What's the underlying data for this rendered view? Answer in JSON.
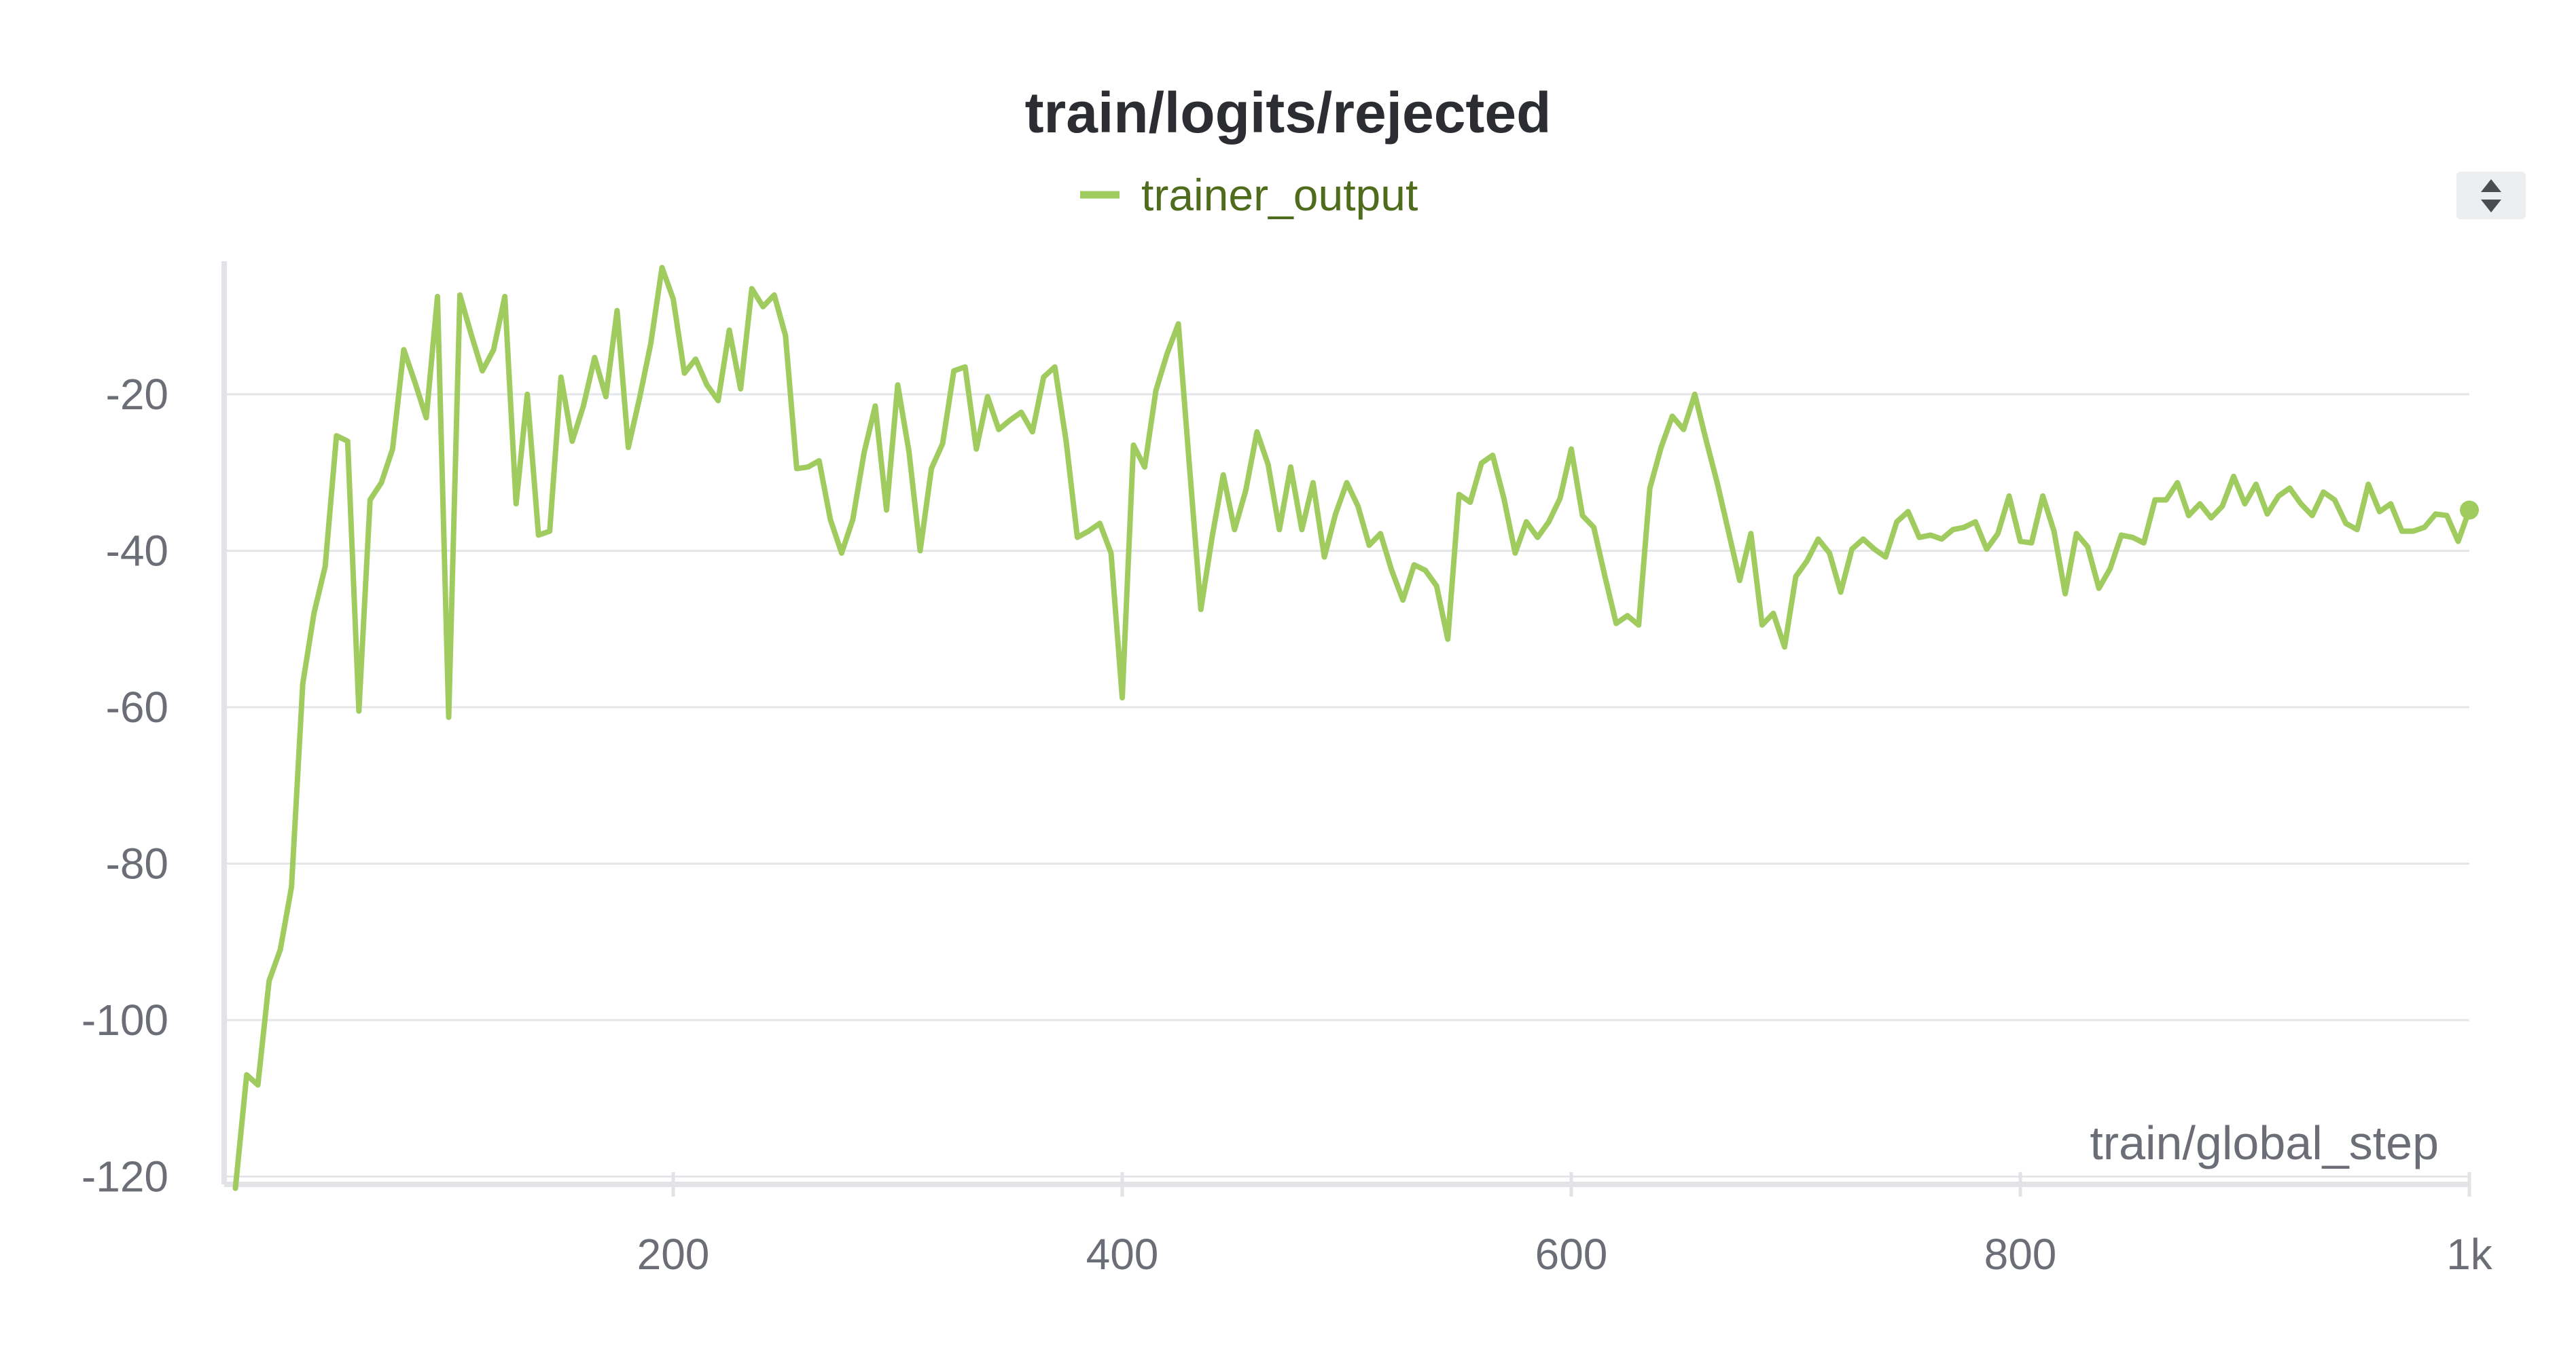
{
  "chart_data": {
    "type": "line",
    "title": "train/logits/rejected",
    "xlabel": "train/global_step",
    "ylabel": "",
    "xlim": [
      0,
      1000
    ],
    "ylim": [
      -121,
      -3
    ],
    "x_ticks": [
      200,
      400,
      600,
      800,
      1000
    ],
    "x_tick_labels": [
      "200",
      "400",
      "600",
      "800",
      "1k"
    ],
    "y_ticks": [
      -120,
      -100,
      -80,
      -60,
      -40,
      -20
    ],
    "y_tick_labels": [
      "-120",
      "-100",
      "-80",
      "-60",
      "-40",
      "-20"
    ],
    "grid": true,
    "legend_position": "top-center",
    "series_color": "#9fcb5f",
    "series": [
      {
        "name": "trainer_output",
        "x": [
          5,
          10,
          15,
          20,
          25,
          30,
          35,
          40,
          45,
          50,
          55,
          60,
          65,
          70,
          75,
          80,
          85,
          90,
          95,
          100,
          105,
          110,
          115,
          120,
          125,
          130,
          135,
          140,
          145,
          150,
          155,
          160,
          165,
          170,
          175,
          180,
          185,
          190,
          195,
          200,
          205,
          210,
          215,
          220,
          225,
          230,
          235,
          240,
          245,
          250,
          255,
          260,
          265,
          270,
          275,
          280,
          285,
          290,
          295,
          300,
          305,
          310,
          315,
          320,
          325,
          330,
          335,
          340,
          345,
          350,
          355,
          360,
          365,
          370,
          375,
          380,
          385,
          390,
          395,
          400,
          405,
          410,
          415,
          420,
          425,
          430,
          435,
          440,
          445,
          450,
          455,
          460,
          465,
          470,
          475,
          480,
          485,
          490,
          495,
          500,
          505,
          510,
          515,
          520,
          525,
          530,
          535,
          540,
          545,
          550,
          555,
          560,
          565,
          570,
          575,
          580,
          585,
          590,
          595,
          600,
          605,
          610,
          615,
          620,
          625,
          630,
          635,
          640,
          645,
          650,
          655,
          660,
          665,
          670,
          675,
          680,
          685,
          690,
          695,
          700,
          705,
          710,
          715,
          720,
          725,
          730,
          735,
          740,
          745,
          750,
          755,
          760,
          765,
          770,
          775,
          780,
          785,
          790,
          795,
          800,
          805,
          810,
          815,
          820,
          825,
          830,
          835,
          840,
          845,
          850,
          855,
          860,
          865,
          870,
          875,
          880,
          885,
          890,
          895,
          900,
          905,
          910,
          915,
          920,
          925,
          930,
          935,
          940,
          945,
          950,
          955,
          960,
          965,
          970,
          975,
          980,
          985,
          990,
          995,
          1000
        ],
        "y": [
          -121.5,
          -107,
          -108.3,
          -95,
          -91,
          -83,
          -57,
          -48,
          -42,
          -25.3,
          -26,
          -60.5,
          -33.5,
          -31.3,
          -27,
          -14.3,
          -18.5,
          -23,
          -7.5,
          -61.3,
          -7.3,
          -12.3,
          -17,
          -14.3,
          -7.5,
          -34,
          -20,
          -38,
          -37.5,
          -17.8,
          -26,
          -21.5,
          -15.3,
          -20.3,
          -9.3,
          -26.8,
          -20.5,
          -13.5,
          -3.8,
          -7.8,
          -17.3,
          -15.5,
          -18.8,
          -20.8,
          -11.8,
          -19.3,
          -6.5,
          -8.8,
          -7.3,
          -12.5,
          -29.5,
          -29.3,
          -28.5,
          -36,
          -40.3,
          -36,
          -27.5,
          -21.5,
          -34.8,
          -18.8,
          -27.3,
          -40,
          -29.5,
          -26.3,
          -17,
          -16.5,
          -27,
          -20.3,
          -24.5,
          -23.3,
          -22.3,
          -24.8,
          -17.8,
          -16.5,
          -26,
          -38.3,
          -37.5,
          -36.5,
          -40.3,
          -58.8,
          -26.5,
          -29.3,
          -19.5,
          -14.8,
          -11,
          -29.5,
          -47.5,
          -38.3,
          -30.3,
          -37.3,
          -32.3,
          -24.8,
          -29,
          -37.3,
          -29.3,
          -37.3,
          -31.3,
          -40.8,
          -35.3,
          -31.3,
          -34.3,
          -39.3,
          -37.8,
          -42.5,
          -46.3,
          -41.8,
          -42.5,
          -44.5,
          -51.3,
          -32.8,
          -33.8,
          -28.8,
          -27.8,
          -33.3,
          -40.3,
          -36.3,
          -38.3,
          -36.3,
          -33.3,
          -27,
          -35.5,
          -37,
          -43.3,
          -49.3,
          -48.3,
          -49.5,
          -32,
          -26.8,
          -22.8,
          -24.5,
          -20,
          -25.8,
          -31.3,
          -37.5,
          -43.8,
          -37.8,
          -49.5,
          -48,
          -52.3,
          -43.3,
          -41.3,
          -38.5,
          -40.3,
          -45.3,
          -39.8,
          -38.5,
          -39.8,
          -40.8,
          -36.3,
          -35,
          -38.3,
          -38,
          -38.5,
          -37.3,
          -37,
          -36.3,
          -39.8,
          -37.8,
          -33,
          -38.8,
          -39,
          -33,
          -37.5,
          -45.5,
          -37.8,
          -39.5,
          -44.8,
          -42.3,
          -38,
          -38.3,
          -39,
          -33.5,
          -33.5,
          -31.3,
          -35.5,
          -34,
          -35.8,
          -34.3,
          -30.5,
          -34,
          -31.5,
          -35.3,
          -33,
          -32,
          -34,
          -35.5,
          -32.5,
          -33.5,
          -36.5,
          -37.3,
          -31.5,
          -35,
          -34,
          -37.5,
          -37.5,
          -37,
          -35.3,
          -35.5,
          -38.8,
          -34.8
        ]
      }
    ]
  }
}
